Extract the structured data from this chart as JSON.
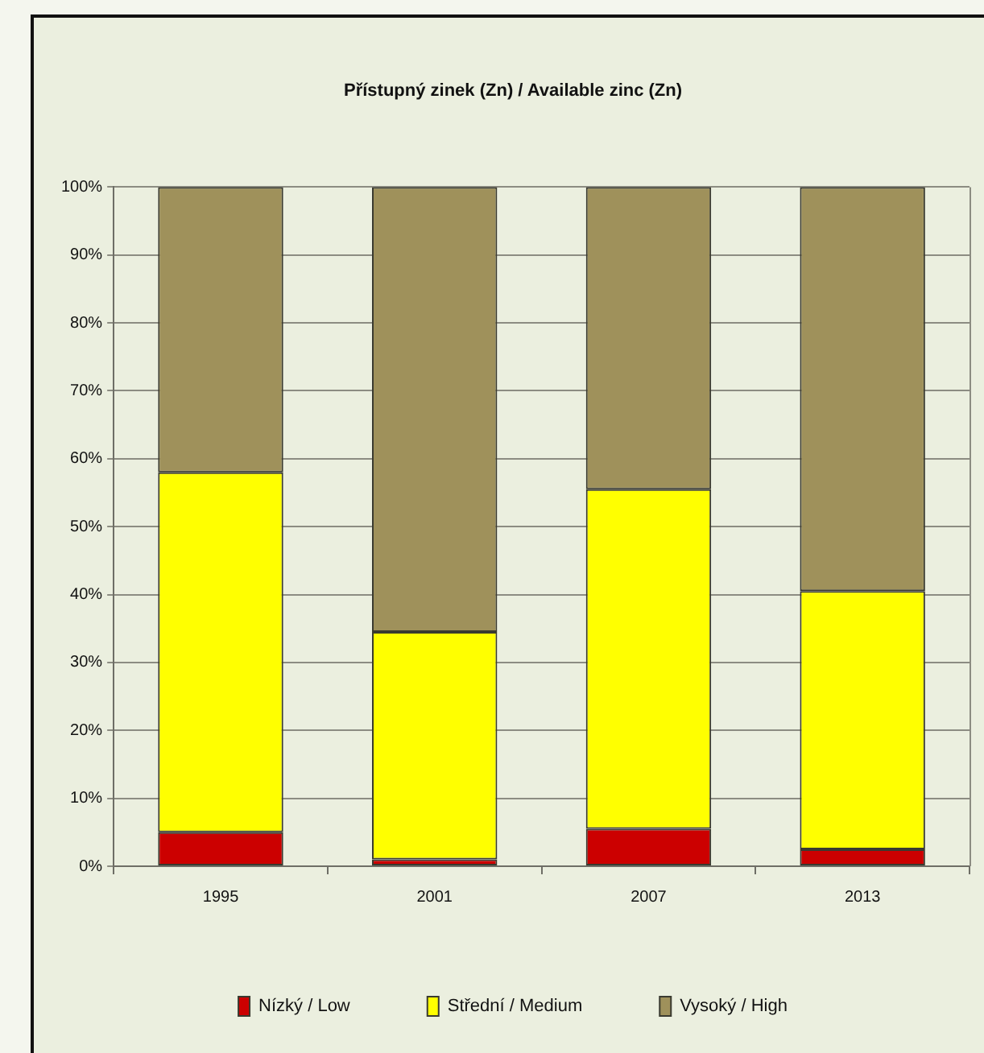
{
  "chart_data": {
    "type": "bar",
    "title": "Přístupný zinek (Zn) / Available zinc (Zn)",
    "categories": [
      "1995",
      "2001",
      "2007",
      "2013"
    ],
    "stacked": true,
    "series": [
      {
        "name": "Nízký / Low",
        "color": "#cc0000",
        "values": [
          5,
          1,
          5.5,
          2.5
        ]
      },
      {
        "name": "Střední / Medium",
        "color": "#ffff00",
        "values": [
          53,
          33.5,
          50,
          38
        ]
      },
      {
        "name": "Vysoký / High",
        "color": "#9f915b",
        "values": [
          42,
          65.5,
          44.5,
          59.5
        ]
      }
    ],
    "ylim": [
      0,
      100
    ],
    "yticks": [
      {
        "value": 0,
        "label": "0%"
      },
      {
        "value": 10,
        "label": "10%"
      },
      {
        "value": 20,
        "label": "20%"
      },
      {
        "value": 30,
        "label": "30%"
      },
      {
        "value": 40,
        "label": "40%"
      },
      {
        "value": 50,
        "label": "50%"
      },
      {
        "value": 60,
        "label": "60%"
      },
      {
        "value": 70,
        "label": "70%"
      },
      {
        "value": 80,
        "label": "80%"
      },
      {
        "value": 90,
        "label": "90%"
      },
      {
        "value": 100,
        "label": "100%"
      }
    ],
    "grid": "y",
    "legend": "bottom"
  }
}
